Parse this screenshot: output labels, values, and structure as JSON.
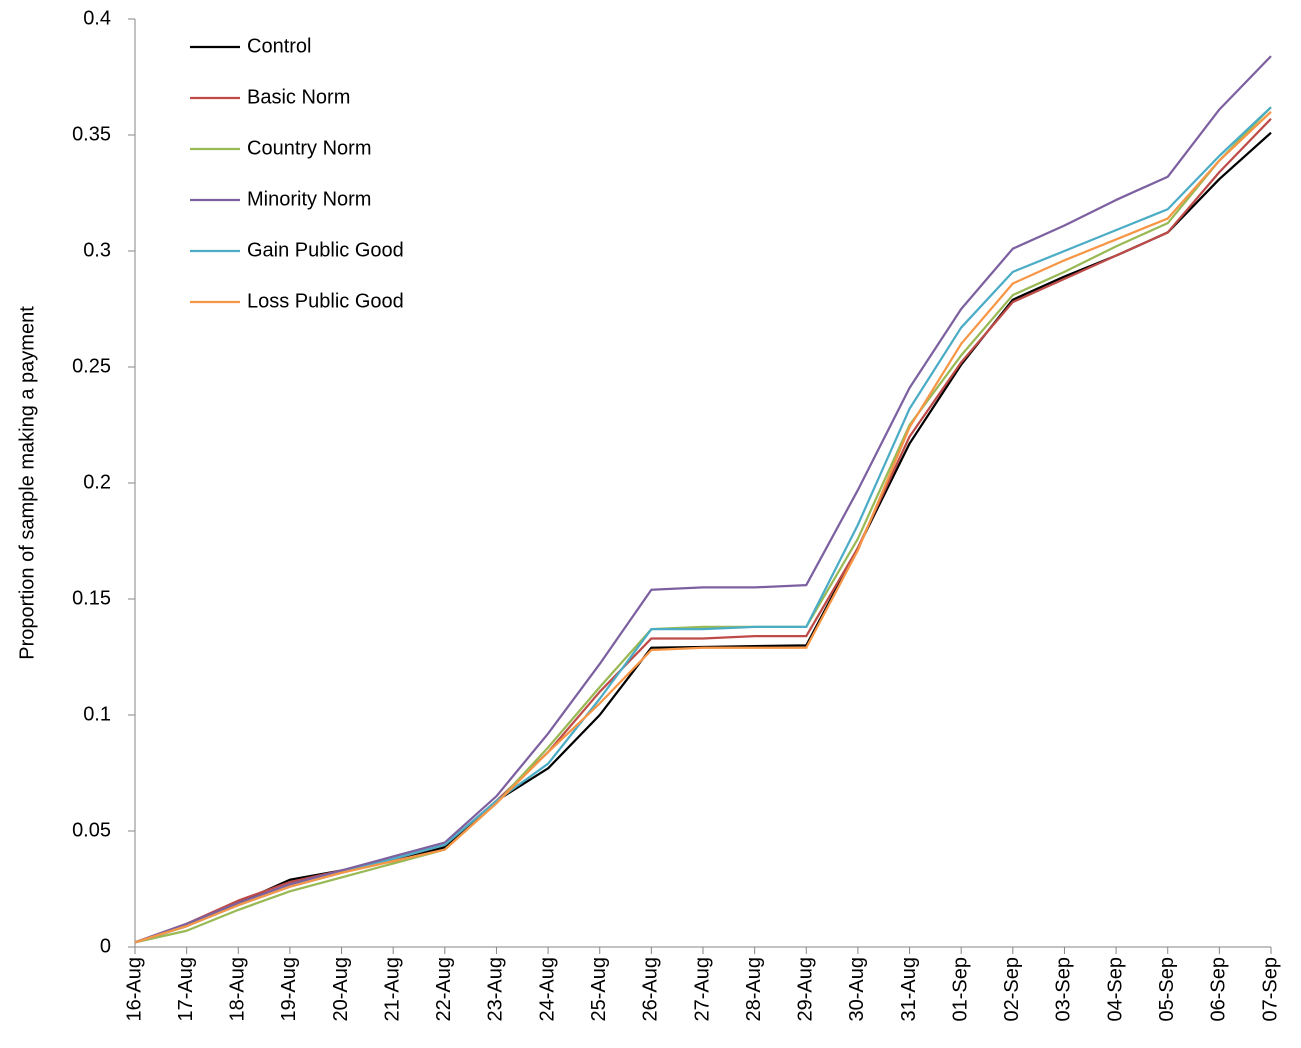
{
  "chart_data": {
    "type": "line",
    "y_label": "Proportion of sample making a payment",
    "categories": [
      "16-Aug",
      "17-Aug",
      "18-Aug",
      "19-Aug",
      "20-Aug",
      "21-Aug",
      "22-Aug",
      "23-Aug",
      "24-Aug",
      "25-Aug",
      "26-Aug",
      "27-Aug",
      "28-Aug",
      "29-Aug",
      "30-Aug",
      "31-Aug",
      "01-Sep",
      "02-Sep",
      "03-Sep",
      "04-Sep",
      "05-Sep",
      "06-Sep",
      "07-Sep"
    ],
    "series": [
      {
        "name": "Control",
        "color": "#000000",
        "values": [
          0.002,
          0.009,
          0.019,
          0.029,
          0.033,
          0.037,
          0.043,
          0.063,
          0.077,
          0.1,
          0.129,
          0.1293,
          0.1297,
          0.13,
          0.172,
          0.217,
          0.251,
          0.279,
          0.289,
          0.298,
          0.308,
          0.331,
          0.351
        ]
      },
      {
        "name": "Basic Norm",
        "color": "#be4b48",
        "values": [
          0.002,
          0.01,
          0.02,
          0.028,
          0.033,
          0.038,
          0.044,
          0.063,
          0.084,
          0.11,
          0.133,
          0.133,
          0.134,
          0.134,
          0.172,
          0.22,
          0.252,
          0.278,
          0.288,
          0.298,
          0.308,
          0.334,
          0.357
        ]
      },
      {
        "name": "Country Norm",
        "color": "#98b954",
        "values": [
          0.002,
          0.007,
          0.016,
          0.024,
          0.03,
          0.036,
          0.042,
          0.062,
          0.086,
          0.112,
          0.137,
          0.138,
          0.138,
          0.138,
          0.176,
          0.225,
          0.255,
          0.281,
          0.291,
          0.302,
          0.312,
          0.339,
          0.362
        ]
      },
      {
        "name": "Minority Norm",
        "color": "#7d60a0",
        "values": [
          0.002,
          0.01,
          0.019,
          0.027,
          0.033,
          0.039,
          0.045,
          0.065,
          0.092,
          0.122,
          0.154,
          0.155,
          0.155,
          0.156,
          0.197,
          0.241,
          0.275,
          0.301,
          0.311,
          0.322,
          0.332,
          0.361,
          0.384
        ]
      },
      {
        "name": "Gain Public Good",
        "color": "#4bacc6",
        "values": [
          0.002,
          0.009,
          0.018,
          0.026,
          0.032,
          0.038,
          0.044,
          0.063,
          0.079,
          0.107,
          0.137,
          0.137,
          0.138,
          0.138,
          0.182,
          0.232,
          0.267,
          0.291,
          0.3,
          0.309,
          0.318,
          0.341,
          0.362
        ]
      },
      {
        "name": "Loss Public Good",
        "color": "#f79646",
        "values": [
          0.002,
          0.009,
          0.018,
          0.026,
          0.032,
          0.037,
          0.042,
          0.062,
          0.084,
          0.105,
          0.128,
          0.129,
          0.129,
          0.129,
          0.171,
          0.224,
          0.26,
          0.286,
          0.296,
          0.305,
          0.314,
          0.339,
          0.36
        ]
      }
    ],
    "ylim": [
      0,
      0.4
    ],
    "yticks": [
      0,
      0.05,
      0.1,
      0.15,
      0.2,
      0.25,
      0.3,
      0.35,
      0.4
    ],
    "grid": false,
    "legend": "upper-left"
  }
}
